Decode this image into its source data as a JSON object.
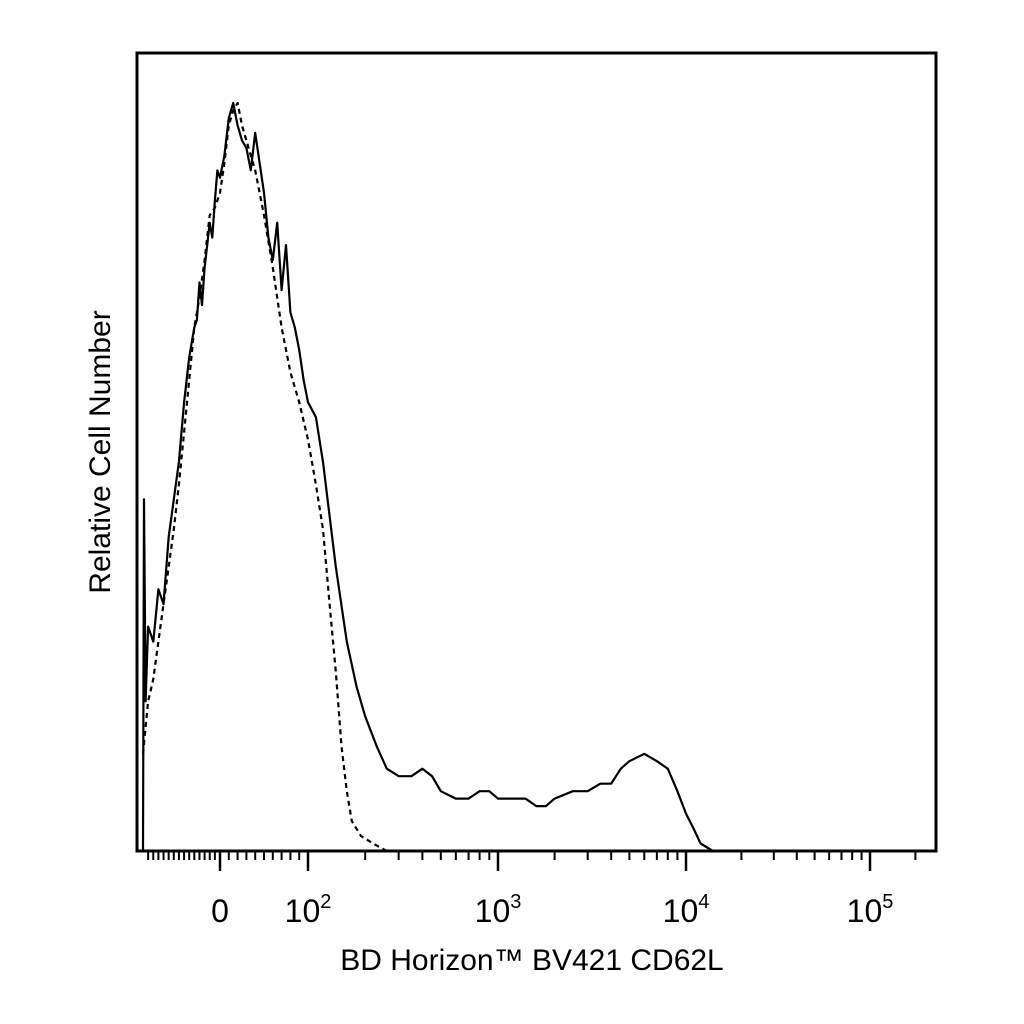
{
  "chart_data": {
    "type": "line",
    "xlabel": "BD Horizon™ BV421 CD62L",
    "ylabel": "Relative Cell Number",
    "x_scale": "biexponential (log above ~10^2, linear near 0)",
    "xlim": [
      -150,
      250000
    ],
    "ylim": [
      0,
      100
    ],
    "y_ticks_shown": false,
    "grid": false,
    "legend": "none",
    "x_ticks": [
      {
        "value": 0,
        "base": "0",
        "exp": ""
      },
      {
        "value": 100,
        "base": "10",
        "exp": "2"
      },
      {
        "value": 1000,
        "base": "10",
        "exp": "3"
      },
      {
        "value": 10000,
        "base": "10",
        "exp": "4"
      },
      {
        "value": 100000,
        "base": "10",
        "exp": "5"
      }
    ],
    "series": [
      {
        "style": "solid",
        "color": "#000000",
        "points": [
          [
            -150,
            0
          ],
          [
            -148,
            47
          ],
          [
            -145,
            20
          ],
          [
            -140,
            30
          ],
          [
            -130,
            28
          ],
          [
            -120,
            35
          ],
          [
            -110,
            33
          ],
          [
            -100,
            42
          ],
          [
            -90,
            47
          ],
          [
            -80,
            52
          ],
          [
            -70,
            60
          ],
          [
            -60,
            66
          ],
          [
            -50,
            70
          ],
          [
            -45,
            71
          ],
          [
            -40,
            76
          ],
          [
            -35,
            73
          ],
          [
            -30,
            78
          ],
          [
            -25,
            81
          ],
          [
            -20,
            84
          ],
          [
            -15,
            82
          ],
          [
            -10,
            87
          ],
          [
            -5,
            91
          ],
          [
            0,
            90
          ],
          [
            5,
            93
          ],
          [
            10,
            98
          ],
          [
            15,
            100
          ],
          [
            20,
            97
          ],
          [
            25,
            95
          ],
          [
            30,
            94
          ],
          [
            35,
            91
          ],
          [
            40,
            96
          ],
          [
            45,
            92
          ],
          [
            50,
            88
          ],
          [
            55,
            82
          ],
          [
            60,
            79
          ],
          [
            65,
            84
          ],
          [
            70,
            75
          ],
          [
            75,
            81
          ],
          [
            80,
            72
          ],
          [
            85,
            70
          ],
          [
            90,
            67
          ],
          [
            95,
            63
          ],
          [
            100,
            60
          ],
          [
            110,
            58
          ],
          [
            120,
            52
          ],
          [
            140,
            38
          ],
          [
            160,
            28
          ],
          [
            180,
            22
          ],
          [
            200,
            18
          ],
          [
            230,
            14
          ],
          [
            260,
            11
          ],
          [
            300,
            10
          ],
          [
            350,
            10
          ],
          [
            400,
            11
          ],
          [
            450,
            10
          ],
          [
            500,
            8
          ],
          [
            600,
            7
          ],
          [
            700,
            7
          ],
          [
            800,
            8
          ],
          [
            900,
            8
          ],
          [
            1000,
            7
          ],
          [
            1200,
            7
          ],
          [
            1400,
            7
          ],
          [
            1600,
            6
          ],
          [
            1800,
            6
          ],
          [
            2000,
            7
          ],
          [
            2500,
            8
          ],
          [
            3000,
            8
          ],
          [
            3500,
            9
          ],
          [
            4000,
            9
          ],
          [
            4500,
            11
          ],
          [
            5000,
            12
          ],
          [
            6000,
            13
          ],
          [
            7000,
            12
          ],
          [
            8000,
            11
          ],
          [
            9000,
            8
          ],
          [
            10000,
            5
          ],
          [
            11000,
            3
          ],
          [
            12000,
            1
          ],
          [
            14000,
            0
          ],
          [
            250000,
            0
          ]
        ]
      },
      {
        "style": "dashed",
        "color": "#000000",
        "points": [
          [
            -150,
            13
          ],
          [
            -140,
            20
          ],
          [
            -130,
            23
          ],
          [
            -120,
            28
          ],
          [
            -110,
            33
          ],
          [
            -100,
            38
          ],
          [
            -90,
            43
          ],
          [
            -80,
            49
          ],
          [
            -70,
            56
          ],
          [
            -60,
            63
          ],
          [
            -50,
            70
          ],
          [
            -40,
            74
          ],
          [
            -30,
            79
          ],
          [
            -20,
            85
          ],
          [
            -10,
            86
          ],
          [
            0,
            88
          ],
          [
            5,
            92
          ],
          [
            10,
            97
          ],
          [
            15,
            99
          ],
          [
            20,
            100
          ],
          [
            25,
            97
          ],
          [
            30,
            95
          ],
          [
            40,
            91
          ],
          [
            50,
            85
          ],
          [
            60,
            78
          ],
          [
            70,
            70
          ],
          [
            80,
            64
          ],
          [
            90,
            60
          ],
          [
            100,
            55
          ],
          [
            110,
            49
          ],
          [
            120,
            43
          ],
          [
            130,
            33
          ],
          [
            140,
            24
          ],
          [
            150,
            14
          ],
          [
            160,
            8
          ],
          [
            170,
            4
          ],
          [
            190,
            2
          ],
          [
            220,
            1
          ],
          [
            260,
            0
          ],
          [
            300,
            0
          ],
          [
            250000,
            0
          ]
        ]
      }
    ]
  }
}
